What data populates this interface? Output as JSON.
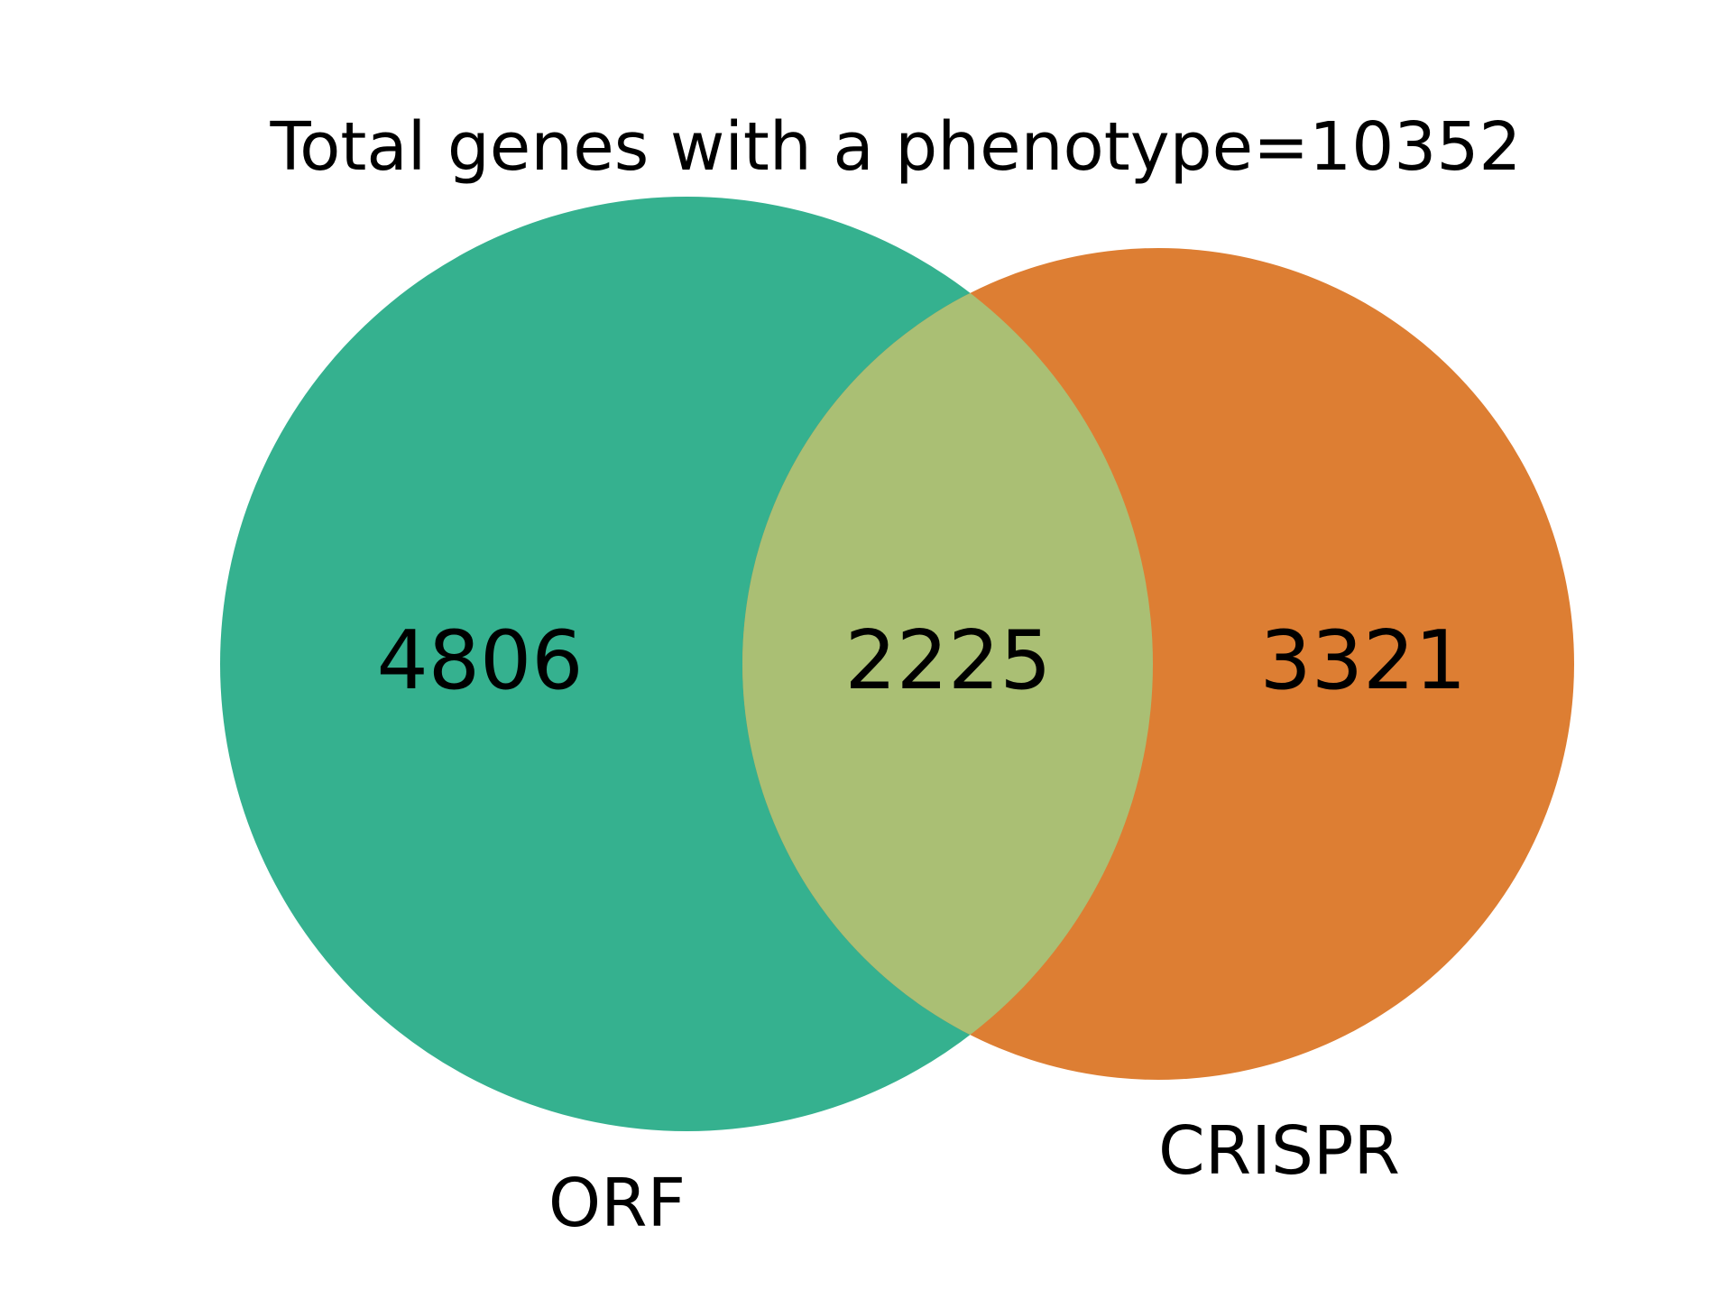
{
  "title": "Total genes with a phenotype=10352",
  "sets": [
    {
      "id": "orf",
      "label": "ORF",
      "only_count": "4806",
      "color": "#35b18f"
    },
    {
      "id": "crispr",
      "label": "CRISPR",
      "only_count": "3321",
      "color": "#dd7e33"
    }
  ],
  "intersection": {
    "count": "2225",
    "color": "#aabf74"
  }
}
